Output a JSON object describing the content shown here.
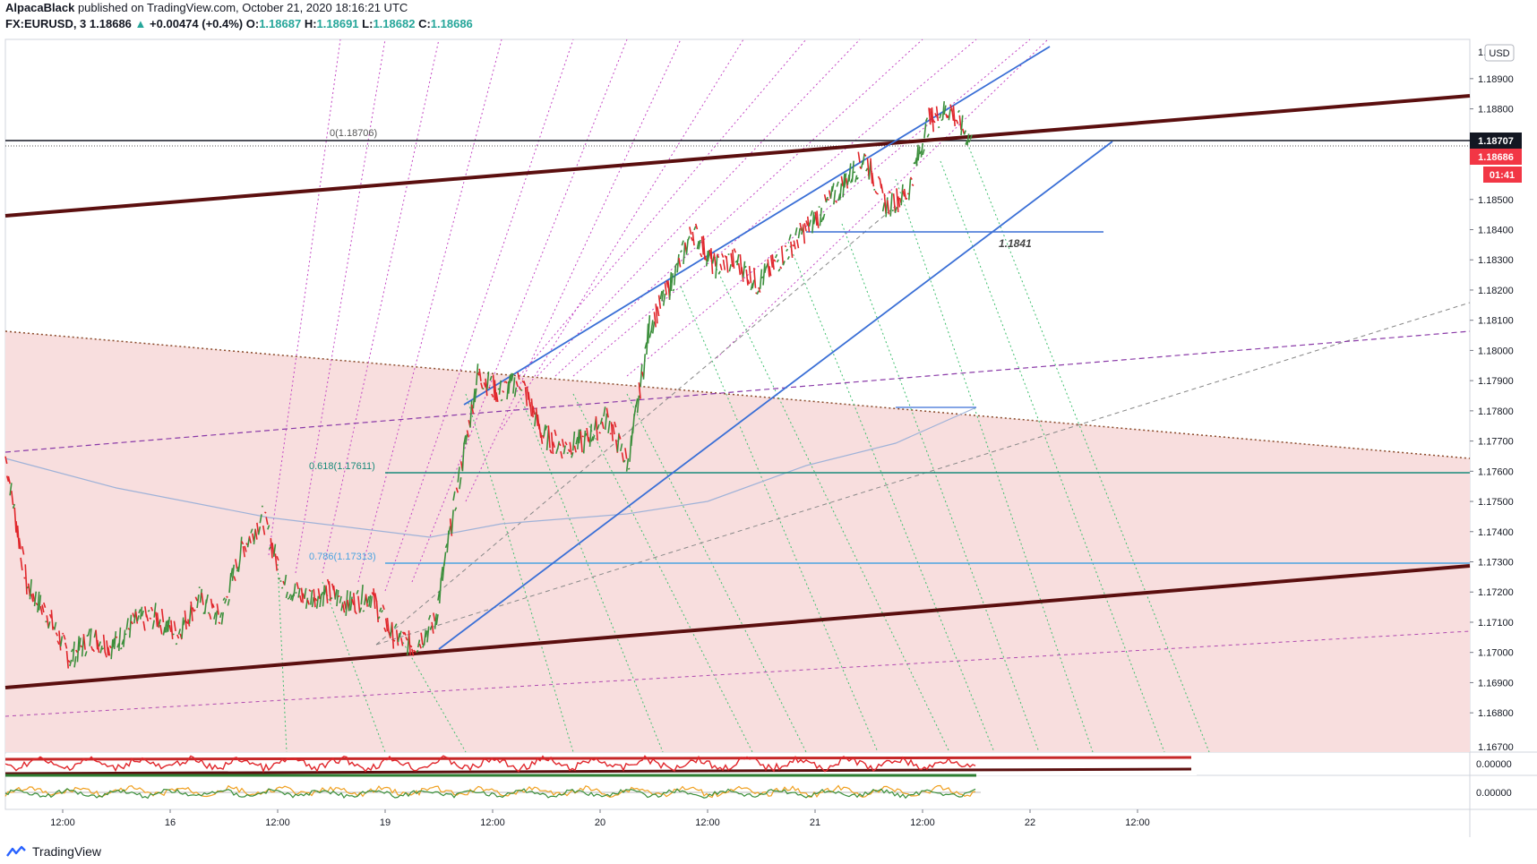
{
  "header": {
    "author": "AlpacaBlack",
    "published": "published on TradingView.com, October 21, 2020 18:16:21 UTC",
    "symbol": "FX:EURUSD, 3",
    "last": "1.18686",
    "change_arrow": "▲",
    "change": "+0.00474 (+0.4%)",
    "open_label": "O:",
    "open": "1.18687",
    "high_label": "H:",
    "high": "1.18691",
    "low_label": "L:",
    "low": "1.18682",
    "close_label": "C:",
    "close": "1.18686"
  },
  "footer": {
    "brand": "TradingView",
    "logo_icon": "tradingview-logo-icon"
  },
  "price_axis": {
    "currency": "USD",
    "top_label": "1.",
    "bottom_label": "1.16700",
    "ticks": [
      "1.18900",
      "1.18800",
      "1.18500",
      "1.18400",
      "1.18300",
      "1.18200",
      "1.18100",
      "1.18000",
      "1.17900",
      "1.17800",
      "1.17700",
      "1.17600",
      "1.17500",
      "1.17400",
      "1.17300",
      "1.17200",
      "1.17100",
      "1.17000",
      "1.16900",
      "1.16800"
    ],
    "badge_current_upper": "1.18707",
    "badge_current_lower": "1.18686",
    "badge_countdown": "01:41",
    "osc1_zero": "0.00000",
    "osc2_zero": "0.00000"
  },
  "time_axis": {
    "labels": [
      "12:00",
      "16",
      "12:00",
      "19",
      "12:00",
      "20",
      "12:00",
      "21",
      "12:00",
      "22",
      "12:00"
    ]
  },
  "annotations": {
    "fib_0": "0(1.18706)",
    "fib_618": "0.618(1.17611)",
    "fib_786": "0.786(1.17313)",
    "level_label": "1.1841"
  },
  "colors": {
    "up": "#26a69a",
    "candle_up": "#3c8f3c",
    "candle_down": "#e0262b",
    "channel": "#3a6fd6",
    "maroon": "#5b0f0f",
    "fib": "#188a7a",
    "fib786": "#4aa3e0",
    "magenta": "#c447c4",
    "green_fan": "#3fbf6f",
    "pink_zone": "#f8dede",
    "badge_dark": "#131722",
    "badge_red": "#f23645"
  },
  "chart_data": {
    "type": "line",
    "title": "",
    "xlabel": "",
    "ylabel": "",
    "ylim": [
      1.1667,
      1.1903
    ],
    "series": [
      {
        "x": [
          0,
          3,
          6,
          9,
          12,
          15,
          18,
          21,
          24,
          27,
          30,
          33,
          36,
          39,
          42,
          45,
          48,
          51,
          54,
          57,
          60,
          63,
          66,
          69,
          72,
          75,
          78,
          81,
          84,
          87,
          90,
          93,
          96,
          99,
          102,
          105,
          108,
          111,
          114,
          117,
          120,
          123,
          126,
          129,
          132,
          135
        ],
        "values": [
          1.1765,
          1.1722,
          1.1712,
          1.1698,
          1.1705,
          1.1702,
          1.171,
          1.1712,
          1.1706,
          1.1718,
          1.1711,
          1.1734,
          1.1745,
          1.1722,
          1.1718,
          1.172,
          1.1716,
          1.1719,
          1.1706,
          1.1702,
          1.171,
          1.1752,
          1.1792,
          1.1786,
          1.179,
          1.1772,
          1.1768,
          1.177,
          1.1778,
          1.1762,
          1.1808,
          1.1822,
          1.184,
          1.1828,
          1.183,
          1.1822,
          1.183,
          1.1838,
          1.1846,
          1.1855,
          1.1864,
          1.1848,
          1.1852,
          1.1876,
          1.188,
          1.18686
        ]
      }
    ]
  }
}
